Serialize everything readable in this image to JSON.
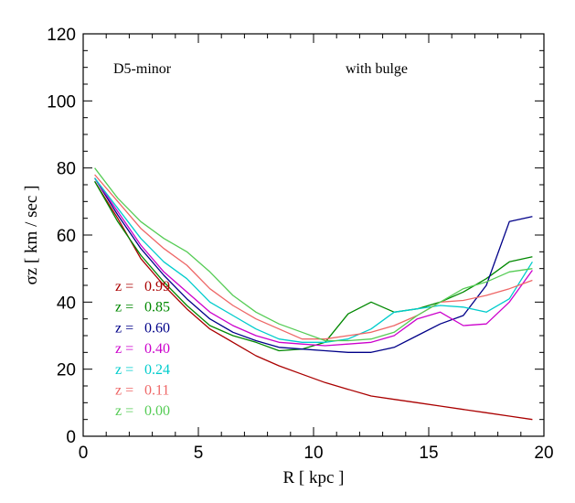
{
  "chart_data": {
    "type": "line",
    "xlabel": "R [ kpc ]",
    "ylabel": "σz [ km / sec ]",
    "xlim": [
      0,
      20
    ],
    "ylim": [
      0,
      120
    ],
    "xticks": [
      0,
      5,
      10,
      15,
      20
    ],
    "yticks": [
      0,
      20,
      40,
      60,
      80,
      100,
      120
    ],
    "grid": false,
    "annotations": [
      "D5-minor",
      "with bulge"
    ],
    "legend_placement": "left, mid-height",
    "series": [
      {
        "name": "z = 0.99",
        "legend_label": "z =",
        "legend_value": "0.99",
        "color": "#aa0000",
        "x": [
          0.5,
          1.5,
          2.5,
          3.5,
          4.5,
          5.5,
          6.5,
          7.5,
          8.5,
          9.5,
          10.5,
          11.5,
          12.5,
          13.5,
          14.5,
          15.5,
          16.5,
          17.5,
          18.5,
          19.5
        ],
        "y": [
          76,
          65,
          53,
          45,
          38,
          32,
          28,
          24,
          21,
          18.5,
          16,
          14,
          12,
          11,
          10,
          9,
          8,
          7,
          6,
          5
        ]
      },
      {
        "name": "z = 0.85",
        "legend_label": "z =",
        "legend_value": "0.85",
        "color": "#008800",
        "x": [
          0.5,
          1.5,
          2.5,
          3.5,
          4.5,
          5.5,
          6.5,
          7.5,
          8.5,
          9.5,
          10.5,
          11.5,
          12.5,
          13.5,
          14.5,
          15.5,
          16.5,
          17.5,
          18.5,
          19.5
        ],
        "y": [
          76,
          64,
          54,
          46,
          39,
          33,
          30,
          28,
          25.5,
          26,
          28,
          36.5,
          40,
          37,
          38,
          40,
          43,
          47,
          52,
          53.5
        ]
      },
      {
        "name": "z = 0.60",
        "legend_label": "z =",
        "legend_value": "0.60",
        "color": "#000088",
        "x": [
          0.5,
          1.5,
          2.5,
          3.5,
          4.5,
          5.5,
          6.5,
          7.5,
          8.5,
          9.5,
          10.5,
          11.5,
          12.5,
          13.5,
          14.5,
          15.5,
          16.5,
          17.5,
          18.5,
          19.5
        ],
        "y": [
          77,
          66,
          56,
          48,
          41,
          35,
          31,
          28.5,
          26.5,
          26,
          25.5,
          25,
          25,
          26.5,
          30,
          33.5,
          36,
          45,
          64,
          65.5
        ]
      },
      {
        "name": "z = 0.40",
        "legend_label": "z =",
        "legend_value": "0.40",
        "color": "#cc00cc",
        "x": [
          0.5,
          1.5,
          2.5,
          3.5,
          4.5,
          5.5,
          6.5,
          7.5,
          8.5,
          9.5,
          10.5,
          11.5,
          12.5,
          13.5,
          14.5,
          15.5,
          16.5,
          17.5,
          18.5,
          19.5
        ],
        "y": [
          77,
          67,
          57,
          49,
          43,
          37,
          33,
          30,
          28,
          27.5,
          27,
          27.5,
          28,
          30,
          35,
          37,
          33,
          33.5,
          40,
          49.5
        ]
      },
      {
        "name": "z = 0.24",
        "legend_label": "z =",
        "legend_value": "0.24",
        "color": "#00cccc",
        "x": [
          0.5,
          1.5,
          2.5,
          3.5,
          4.5,
          5.5,
          6.5,
          7.5,
          8.5,
          9.5,
          10.5,
          11.5,
          12.5,
          13.5,
          14.5,
          15.5,
          16.5,
          17.5,
          18.5,
          19.5
        ],
        "y": [
          77,
          68,
          59,
          52,
          47,
          40,
          36,
          32,
          29,
          28,
          28,
          29,
          32,
          37,
          38,
          39,
          38.5,
          37,
          41,
          52
        ]
      },
      {
        "name": "z = 0.11",
        "legend_label": "z =",
        "legend_value": "0.11",
        "color": "#ee6666",
        "x": [
          0.5,
          1.5,
          2.5,
          3.5,
          4.5,
          5.5,
          6.5,
          7.5,
          8.5,
          9.5,
          10.5,
          11.5,
          12.5,
          13.5,
          14.5,
          15.5,
          16.5,
          17.5,
          18.5,
          19.5
        ],
        "y": [
          78,
          70,
          62,
          56,
          51,
          44,
          39,
          35,
          32,
          29,
          29,
          30,
          31,
          33,
          36,
          40,
          40.5,
          42,
          44,
          46.5
        ]
      },
      {
        "name": "z = 0.00",
        "legend_label": "z =",
        "legend_value": "0.00",
        "color": "#55cc55",
        "x": [
          0.5,
          1.5,
          2.5,
          3.5,
          4.5,
          5.5,
          6.5,
          7.5,
          8.5,
          9.5,
          10.5,
          11.5,
          12.5,
          13.5,
          14.5,
          15.5,
          16.5,
          17.5,
          18.5,
          19.5
        ],
        "y": [
          80,
          71,
          64,
          59,
          55,
          49,
          42,
          37,
          33.5,
          31,
          28.5,
          28.5,
          29,
          31,
          36,
          40,
          44,
          46,
          49,
          50
        ]
      }
    ]
  }
}
